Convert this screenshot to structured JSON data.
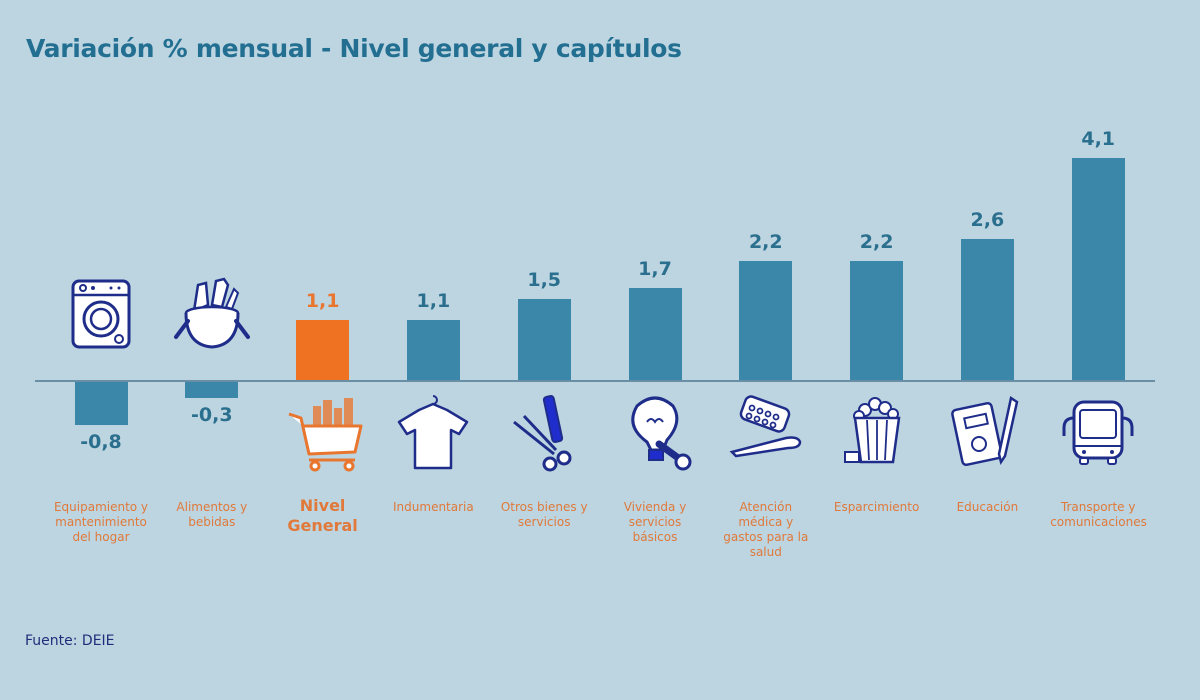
{
  "header": {
    "title": "Variación % mensual - Nivel general y capítulos"
  },
  "footer": {
    "source": "Fuente: DEIE"
  },
  "colors": {
    "background": "#bdd5e1",
    "bar": "#3a87aa",
    "highlight": "#ef7122",
    "title": "#236f92",
    "label": "#e0793a",
    "axis": "#6a8ea3",
    "icon_stroke": "#1f2d8a"
  },
  "categories": [
    {
      "label": "Equipamiento y mantenimiento del hogar",
      "value_label": "-0,8",
      "icon": "washing-machine-icon"
    },
    {
      "label": "Alimentos y bebidas",
      "value_label": "-0,3",
      "icon": "food-pot-icon"
    },
    {
      "label": "Nivel General",
      "value_label": "1,1",
      "icon": "shopping-cart-icon",
      "highlight": true
    },
    {
      "label": "Indumentaria",
      "value_label": "1,1",
      "icon": "tshirt-icon"
    },
    {
      "label": "Otros bienes y servicios",
      "value_label": "1,5",
      "icon": "scissors-comb-icon"
    },
    {
      "label": "Vivienda y servicios básicos",
      "value_label": "1,7",
      "icon": "lightbulb-wrench-icon"
    },
    {
      "label": "Atención médica y gastos para la salud",
      "value_label": "2,2",
      "icon": "pills-thermometer-icon"
    },
    {
      "label": "Esparcimiento",
      "value_label": "2,2",
      "icon": "popcorn-icon"
    },
    {
      "label": "Educación",
      "value_label": "2,6",
      "icon": "notebook-pencil-icon"
    },
    {
      "label": "Transporte y comunicaciones",
      "value_label": "4,1",
      "icon": "bus-icon"
    }
  ],
  "chart_data": {
    "type": "bar",
    "title": "Variación % mensual - Nivel general y capítulos",
    "xlabel": "",
    "ylabel": "",
    "categories": [
      "Equipamiento y mantenimiento del hogar",
      "Alimentos y bebidas",
      "Nivel General",
      "Indumentaria",
      "Otros bienes y servicios",
      "Vivienda y servicios básicos",
      "Atención médica y gastos para la salud",
      "Esparcimiento",
      "Educación",
      "Transporte y comunicaciones"
    ],
    "values": [
      -0.8,
      -0.3,
      1.1,
      1.1,
      1.5,
      1.7,
      2.2,
      2.2,
      2.6,
      4.1
    ],
    "highlighted_category": "Nivel General",
    "data_labels": true,
    "grid": false,
    "legend": null,
    "ylim": [
      -1,
      4.5
    ],
    "source": "Fuente: DEIE"
  }
}
